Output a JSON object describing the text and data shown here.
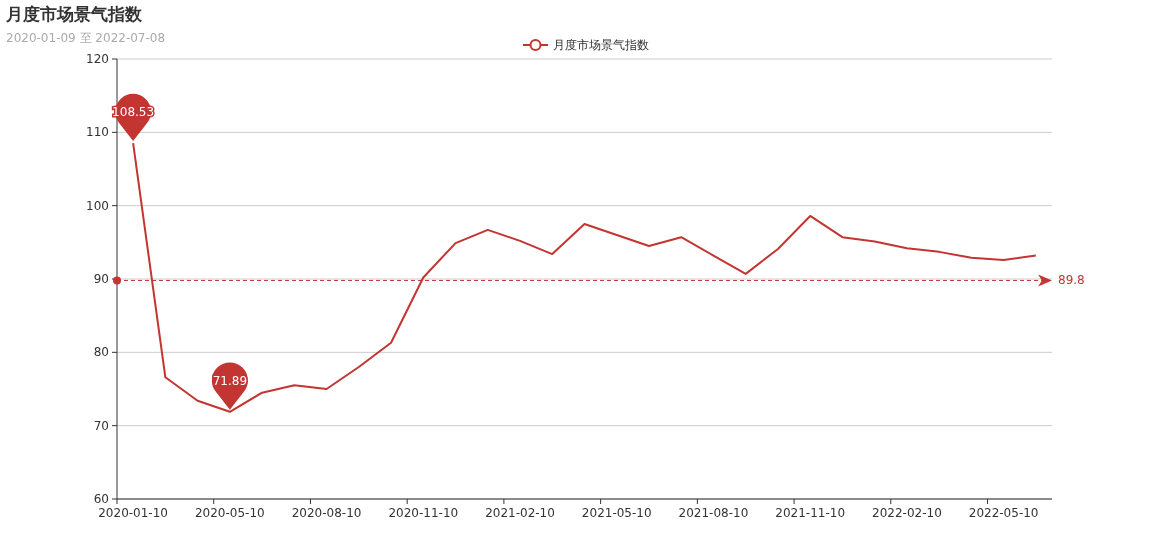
{
  "chart_data": {
    "type": "line",
    "title": "月度市场景气指数",
    "subtitle": "2020-01-09 至 2022-07-08",
    "categories": [
      "2020-01-10",
      null,
      null,
      "2020-05-10",
      null,
      null,
      "2020-08-10",
      null,
      null,
      "2020-11-10",
      null,
      null,
      "2021-02-10",
      null,
      null,
      "2021-05-10",
      null,
      null,
      "2021-08-10",
      null,
      null,
      "2021-11-10",
      null,
      null,
      "2022-02-10",
      null,
      null,
      "2022-05-10",
      null
    ],
    "series": [
      {
        "name": "月度市场景气指数",
        "color": "#c23531",
        "values": [
          108.53,
          76.6,
          73.4,
          71.89,
          74.5,
          75.5,
          75.0,
          78.0,
          81.3,
          90.2,
          94.9,
          96.7,
          95.2,
          93.4,
          97.5,
          96.0,
          94.5,
          95.7,
          93.2,
          90.7,
          94.1,
          98.6,
          95.7,
          95.1,
          94.2,
          93.7,
          92.9,
          92.6,
          93.2
        ]
      }
    ],
    "ylim": [
      60,
      120
    ],
    "yticks": [
      60,
      70,
      80,
      90,
      100,
      110,
      120
    ],
    "grid": "y",
    "legend": "top",
    "marker": "none",
    "line_style": "solid",
    "ref_lines": [
      {
        "axis": "y",
        "value": 89.8,
        "label": "89.8",
        "line_style": "dashed",
        "color": "#c23531"
      }
    ],
    "annotations": [
      {
        "text": "108.53",
        "x": "2020-01-10",
        "y": 108.53
      },
      {
        "text": "71.89",
        "y": 71.89
      }
    ]
  }
}
